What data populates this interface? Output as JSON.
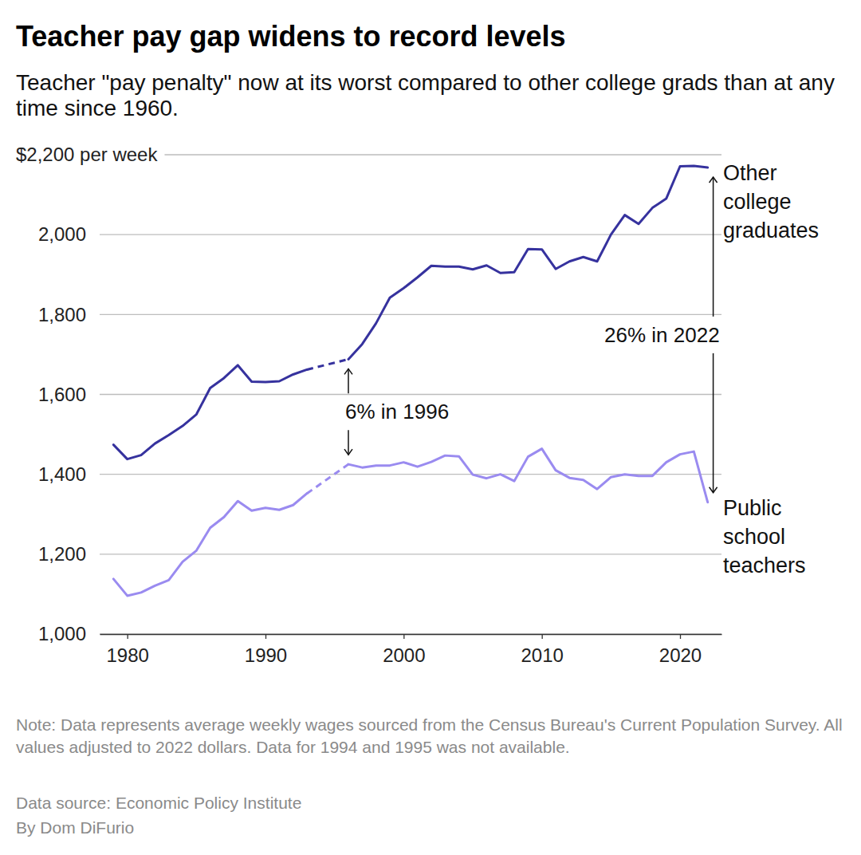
{
  "chart_data": {
    "type": "line",
    "title": "Teacher pay gap widens to record levels",
    "subtitle": "Teacher \"pay penalty\" now at its worst compared to other college grads than at any time since 1960.",
    "x": [
      1979,
      1980,
      1981,
      1982,
      1983,
      1984,
      1985,
      1986,
      1987,
      1988,
      1989,
      1990,
      1991,
      1992,
      1993,
      1994,
      1995,
      1996,
      1997,
      1998,
      1999,
      2000,
      2001,
      2002,
      2003,
      2004,
      2005,
      2006,
      2007,
      2008,
      2009,
      2010,
      2011,
      2012,
      2013,
      2014,
      2015,
      2016,
      2017,
      2018,
      2019,
      2020,
      2021,
      2022
    ],
    "series": [
      {
        "name": "Other college graduates",
        "color": "#36329e",
        "values": [
          1474,
          1438,
          1448,
          1477,
          1498,
          1521,
          1550,
          1616,
          1641,
          1673,
          1632,
          1631,
          1633,
          1650,
          1662,
          null,
          null,
          1688,
          1726,
          1778,
          1842,
          1866,
          1893,
          1922,
          1920,
          1920,
          1913,
          1923,
          1904,
          1906,
          1964,
          1963,
          1914,
          1933,
          1944,
          1933,
          2000,
          2049,
          2027,
          2067,
          2090,
          2171,
          2172,
          2168
        ]
      },
      {
        "name": "Public school teachers",
        "color": "#9a8bf0",
        "values": [
          1138,
          1096,
          1104,
          1121,
          1135,
          1181,
          1209,
          1266,
          1293,
          1333,
          1309,
          1316,
          1311,
          1323,
          1352,
          null,
          null,
          1425,
          1417,
          1422,
          1422,
          1430,
          1419,
          1431,
          1447,
          1445,
          1399,
          1390,
          1400,
          1383,
          1444,
          1464,
          1410,
          1391,
          1386,
          1363,
          1393,
          1400,
          1396,
          1396,
          1430,
          1450,
          1457,
          1330
        ]
      }
    ],
    "xlim": [
      1978,
      2023
    ],
    "ylim": [
      1000,
      2200
    ],
    "xticks": [
      1980,
      1990,
      2000,
      2010,
      2020
    ],
    "yticks": [
      {
        "value": 1000,
        "label": "1,000"
      },
      {
        "value": 1200,
        "label": "1,200"
      },
      {
        "value": 1400,
        "label": "1,400"
      },
      {
        "value": 1600,
        "label": "1,600"
      },
      {
        "value": 1800,
        "label": "1,800"
      },
      {
        "value": 2000,
        "label": "2,000"
      },
      {
        "value": 2200,
        "label": "$2,200 per week"
      }
    ],
    "grid": true,
    "annotations": [
      {
        "text": "6% in 1996",
        "x": 1996
      },
      {
        "text": "26% in 2022",
        "x": 2022.4
      }
    ],
    "note": "Note: Data represents average weekly wages sourced from the Census Bureau's Current Population Survey. All values adjusted to 2022 dollars. Data for 1994 and 1995 was not available.",
    "source": "Data source: Economic Policy Institute",
    "byline": "By Dom DiFurio"
  }
}
